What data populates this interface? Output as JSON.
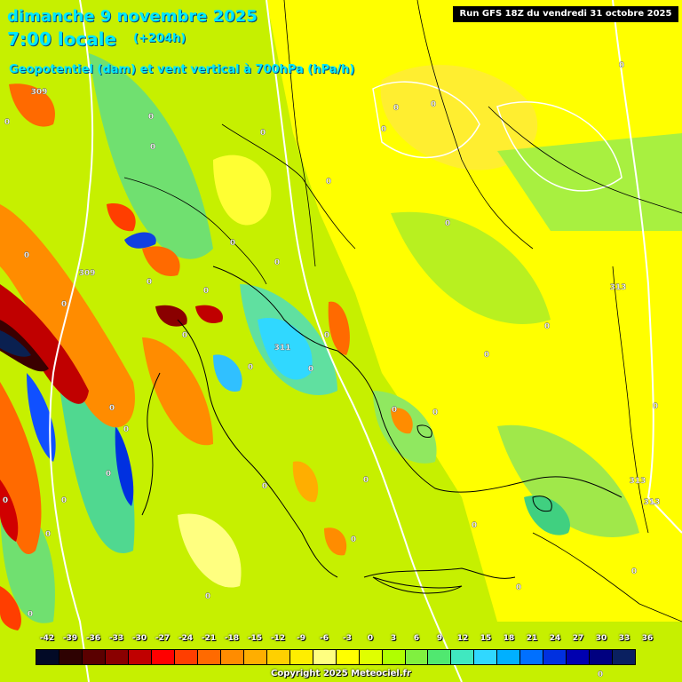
{
  "header": {
    "date": "dimanche 9 novembre 2025",
    "local_time": "7:00 locale",
    "forecast_step": "(+204h)",
    "parameter": "Geopotentiel (dam) et vent vertical à 700hPa (hPa/h)",
    "run": "Run GFS 18Z du vendredi 31 octobre 2025"
  },
  "scale": {
    "ticks": [
      "-42",
      "-39",
      "-36",
      "-33",
      "-30",
      "-27",
      "-24",
      "-21",
      "-18",
      "-15",
      "-12",
      "-9",
      "-6",
      "-3",
      "0",
      "3",
      "6",
      "9",
      "12",
      "15",
      "18",
      "21",
      "24",
      "27",
      "30",
      "33",
      "36"
    ],
    "colors": [
      "#020a26",
      "#2e0202",
      "#5a0000",
      "#8a0000",
      "#c00000",
      "#ff0000",
      "#ff3e00",
      "#ff6a00",
      "#ff8c00",
      "#ffae00",
      "#ffd000",
      "#ffee00",
      "#ffff80",
      "#ffff00",
      "#e0ff00",
      "#b0ff00",
      "#80f040",
      "#50e870",
      "#40e8c0",
      "#30d8ff",
      "#00b0ff",
      "#0070ff",
      "#0030e0",
      "#0000b0",
      "#000080",
      "#0a2060"
    ]
  },
  "contour_labels": [
    "0",
    "0",
    "0",
    "0",
    "0",
    "0",
    "0",
    "0",
    "0",
    "0",
    "0",
    "0",
    "0",
    "0",
    "0",
    "0",
    "0",
    "0",
    "0",
    "0",
    "0",
    "0",
    "0",
    "0",
    "0",
    "0",
    "0",
    "0",
    "0",
    "0",
    "0",
    "0",
    "0",
    "0",
    "0",
    "0",
    "0",
    "0",
    "0",
    "0",
    "309",
    "309",
    "311",
    "313",
    "313",
    "313"
  ],
  "colors": {
    "background": "#c6f000",
    "title_text": "#00e8ff",
    "run_box": "#000000"
  },
  "copyright": "Copyright 2025 Meteociel.fr"
}
